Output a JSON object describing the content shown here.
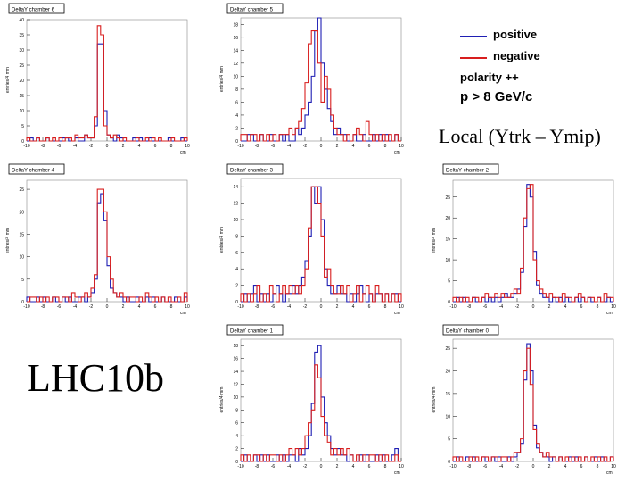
{
  "colors": {
    "positive": "#1f1fb4",
    "negative": "#d81e1e",
    "axis": "#000000"
  },
  "labels": {
    "run": "LHC10b",
    "local": "Local (Ytrk – Ymip)",
    "positive": "positive",
    "negative": "negative",
    "polarity": "polarity ++",
    "cut": "p > 8 GeV/c"
  },
  "chart_data": [
    {
      "type": "histogram",
      "title": "DeltaY chamber 6",
      "ylabel": "entries/4 mm",
      "xlabel": "cm",
      "xlim": [
        -10,
        10
      ],
      "ylim": [
        0,
        40
      ],
      "yticks": [
        0,
        5,
        10,
        15,
        20,
        25,
        30,
        35,
        40
      ],
      "xticks": [
        -10,
        -8,
        -6,
        -4,
        -2,
        0,
        2,
        4,
        6,
        8,
        10
      ],
      "series": [
        {
          "name": "positive",
          "values": [
            0,
            1,
            0,
            1,
            0,
            0,
            1,
            0,
            0,
            0,
            0,
            1,
            1,
            0,
            0,
            1,
            0,
            0,
            2,
            1,
            1,
            5,
            32,
            32,
            10,
            2,
            1,
            0,
            2,
            1,
            0,
            0,
            0,
            1,
            0,
            1,
            0,
            0,
            1,
            0,
            0,
            0,
            0,
            0,
            1,
            0,
            0,
            0,
            1,
            0
          ]
        },
        {
          "name": "negative",
          "values": [
            1,
            0,
            0,
            1,
            0,
            0,
            1,
            0,
            1,
            0,
            1,
            0,
            1,
            1,
            0,
            2,
            1,
            1,
            2,
            1,
            1,
            8,
            38,
            35,
            5,
            2,
            1,
            2,
            1,
            0,
            1,
            0,
            0,
            0,
            1,
            0,
            0,
            1,
            0,
            1,
            0,
            1,
            0,
            0,
            0,
            1,
            0,
            0,
            0,
            1
          ]
        }
      ]
    },
    {
      "type": "histogram",
      "title": "DeltaY chamber 5",
      "ylabel": "entries/4 mm",
      "xlabel": "cm",
      "xlim": [
        -10,
        10
      ],
      "ylim": [
        0,
        19
      ],
      "yticks": [
        0,
        2,
        4,
        6,
        8,
        10,
        12,
        14,
        16,
        18
      ],
      "xticks": [
        -10,
        -8,
        -6,
        -4,
        -2,
        0,
        2,
        4,
        6,
        8,
        10
      ],
      "series": [
        {
          "name": "positive",
          "values": [
            0,
            0,
            1,
            1,
            0,
            0,
            1,
            0,
            0,
            1,
            0,
            0,
            1,
            0,
            1,
            0,
            0,
            2,
            1,
            2,
            4,
            6,
            10,
            17,
            19,
            12,
            8,
            5,
            3,
            1,
            2,
            1,
            1,
            0,
            0,
            1,
            0,
            0,
            1,
            0,
            0,
            1,
            0,
            1,
            0,
            1,
            0,
            0,
            1,
            0
          ]
        },
        {
          "name": "negative",
          "values": [
            1,
            1,
            0,
            1,
            1,
            0,
            1,
            0,
            1,
            0,
            1,
            0,
            1,
            1,
            1,
            2,
            1,
            2,
            3,
            5,
            9,
            15,
            17,
            17,
            12,
            6,
            10,
            8,
            4,
            2,
            1,
            1,
            0,
            1,
            0,
            1,
            2,
            1,
            0,
            3,
            1,
            0,
            1,
            0,
            1,
            0,
            1,
            0,
            1,
            0
          ]
        }
      ]
    },
    {
      "type": "histogram",
      "title": "DeltaY chamber 4",
      "ylabel": "entries/4 mm",
      "xlabel": "cm",
      "xlim": [
        -10,
        10
      ],
      "ylim": [
        0,
        27
      ],
      "yticks": [
        0,
        5,
        10,
        15,
        20,
        25
      ],
      "xticks": [
        -10,
        -8,
        -6,
        -4,
        -2,
        0,
        2,
        4,
        6,
        8,
        10
      ],
      "series": [
        {
          "name": "positive",
          "values": [
            1,
            0,
            0,
            1,
            0,
            1,
            0,
            0,
            1,
            0,
            0,
            1,
            0,
            1,
            0,
            0,
            1,
            1,
            0,
            1,
            2,
            5,
            22,
            24,
            18,
            8,
            3,
            2,
            1,
            1,
            0,
            1,
            0,
            0,
            1,
            0,
            0,
            1,
            0,
            1,
            0,
            0,
            1,
            0,
            0,
            0,
            1,
            0,
            0,
            1
          ]
        },
        {
          "name": "negative",
          "values": [
            0,
            1,
            1,
            0,
            1,
            0,
            1,
            0,
            1,
            1,
            0,
            1,
            1,
            0,
            2,
            1,
            0,
            1,
            2,
            1,
            3,
            6,
            25,
            25,
            20,
            10,
            5,
            2,
            1,
            2,
            1,
            0,
            1,
            1,
            0,
            1,
            0,
            2,
            1,
            0,
            1,
            0,
            1,
            0,
            1,
            0,
            0,
            1,
            0,
            2
          ]
        }
      ]
    },
    {
      "type": "histogram",
      "title": "DeltaY chamber 3",
      "ylabel": "entries/4 mm",
      "xlabel": "cm",
      "xlim": [
        -10,
        10
      ],
      "ylim": [
        0,
        15
      ],
      "yticks": [
        0,
        2,
        4,
        6,
        8,
        10,
        12,
        14
      ],
      "xticks": [
        -10,
        -8,
        -6,
        -4,
        -2,
        0,
        2,
        4,
        6,
        8,
        10
      ],
      "series": [
        {
          "name": "positive",
          "values": [
            0,
            1,
            0,
            1,
            2,
            0,
            1,
            0,
            1,
            0,
            1,
            2,
            1,
            0,
            1,
            1,
            2,
            1,
            2,
            3,
            5,
            8,
            14,
            12,
            14,
            10,
            4,
            2,
            1,
            1,
            2,
            1,
            1,
            0,
            1,
            0,
            1,
            2,
            1,
            0,
            1,
            0,
            1,
            1,
            0,
            1,
            0,
            1,
            1,
            0
          ]
        },
        {
          "name": "negative",
          "values": [
            1,
            0,
            1,
            0,
            1,
            2,
            0,
            1,
            0,
            2,
            1,
            0,
            1,
            2,
            1,
            2,
            1,
            2,
            1,
            2,
            4,
            9,
            14,
            14,
            12,
            8,
            3,
            4,
            2,
            1,
            1,
            2,
            1,
            2,
            0,
            1,
            2,
            0,
            1,
            2,
            1,
            0,
            2,
            1,
            0,
            1,
            0,
            1,
            0,
            1
          ]
        }
      ]
    },
    {
      "type": "histogram",
      "title": "DeltaY chamber 2",
      "ylabel": "entries/4 mm",
      "xlabel": "cm",
      "xlim": [
        -10,
        10
      ],
      "ylim": [
        0,
        29
      ],
      "yticks": [
        0,
        5,
        10,
        15,
        20,
        25
      ],
      "xticks": [
        -10,
        -8,
        -6,
        -4,
        -2,
        0,
        2,
        4,
        6,
        8,
        10
      ],
      "series": [
        {
          "name": "positive",
          "values": [
            0,
            1,
            0,
            1,
            0,
            0,
            1,
            0,
            0,
            1,
            0,
            1,
            0,
            1,
            0,
            1,
            2,
            1,
            1,
            2,
            3,
            7,
            18,
            28,
            25,
            12,
            4,
            2,
            1,
            1,
            0,
            1,
            0,
            1,
            0,
            1,
            0,
            0,
            1,
            0,
            1,
            0,
            1,
            0,
            0,
            1,
            0,
            0,
            1,
            0
          ]
        },
        {
          "name": "negative",
          "values": [
            1,
            0,
            1,
            0,
            1,
            0,
            1,
            1,
            0,
            1,
            2,
            1,
            1,
            2,
            1,
            2,
            1,
            1,
            2,
            3,
            2,
            8,
            20,
            27,
            28,
            10,
            5,
            3,
            2,
            1,
            2,
            1,
            1,
            0,
            2,
            1,
            1,
            0,
            1,
            2,
            1,
            0,
            1,
            1,
            0,
            1,
            0,
            2,
            1,
            1
          ]
        }
      ]
    },
    {
      "type": "histogram",
      "title": "DeltaY chamber 1",
      "ylabel": "entries/4 mm",
      "xlabel": "cm",
      "xlim": [
        -10,
        10
      ],
      "ylim": [
        0,
        19
      ],
      "yticks": [
        0,
        2,
        4,
        6,
        8,
        10,
        12,
        14,
        16,
        18
      ],
      "xticks": [
        -10,
        -8,
        -6,
        -4,
        -2,
        0,
        2,
        4,
        6,
        8,
        10
      ],
      "series": [
        {
          "name": "positive",
          "values": [
            0,
            1,
            0,
            0,
            1,
            0,
            1,
            0,
            1,
            0,
            0,
            1,
            0,
            1,
            0,
            1,
            1,
            0,
            2,
            1,
            2,
            4,
            9,
            17,
            18,
            10,
            6,
            4,
            2,
            1,
            2,
            1,
            1,
            0,
            1,
            0,
            0,
            1,
            0,
            1,
            0,
            0,
            1,
            0,
            1,
            0,
            0,
            1,
            2,
            0
          ]
        },
        {
          "name": "negative",
          "values": [
            1,
            0,
            1,
            0,
            1,
            1,
            0,
            1,
            0,
            1,
            1,
            0,
            1,
            0,
            1,
            2,
            1,
            2,
            1,
            2,
            4,
            6,
            8,
            15,
            13,
            7,
            4,
            3,
            1,
            2,
            1,
            2,
            1,
            2,
            1,
            0,
            1,
            0,
            1,
            0,
            1,
            1,
            0,
            1,
            0,
            1,
            0,
            0,
            1,
            0
          ]
        }
      ]
    },
    {
      "type": "histogram",
      "title": "DeltaY chamber 0",
      "ylabel": "entries/4 mm",
      "xlabel": "cm",
      "xlim": [
        -10,
        10
      ],
      "ylim": [
        0,
        27
      ],
      "yticks": [
        0,
        5,
        10,
        15,
        20,
        25
      ],
      "xticks": [
        -10,
        -8,
        -6,
        -4,
        -2,
        0,
        2,
        4,
        6,
        8,
        10
      ],
      "series": [
        {
          "name": "positive",
          "values": [
            0,
            1,
            0,
            0,
            1,
            0,
            1,
            0,
            0,
            1,
            0,
            0,
            1,
            0,
            1,
            0,
            0,
            1,
            0,
            1,
            2,
            4,
            18,
            26,
            20,
            8,
            3,
            2,
            1,
            1,
            0,
            1,
            0,
            1,
            0,
            0,
            1,
            0,
            1,
            0,
            0,
            1,
            0,
            0,
            1,
            0,
            1,
            0,
            0,
            1
          ]
        },
        {
          "name": "negative",
          "values": [
            1,
            0,
            1,
            0,
            0,
            1,
            0,
            1,
            0,
            1,
            1,
            0,
            1,
            1,
            0,
            1,
            1,
            0,
            1,
            2,
            2,
            5,
            20,
            25,
            17,
            7,
            4,
            2,
            1,
            2,
            1,
            1,
            0,
            1,
            0,
            1,
            0,
            1,
            0,
            1,
            0,
            1,
            0,
            1,
            0,
            1,
            0,
            1,
            0,
            1
          ]
        }
      ]
    }
  ]
}
